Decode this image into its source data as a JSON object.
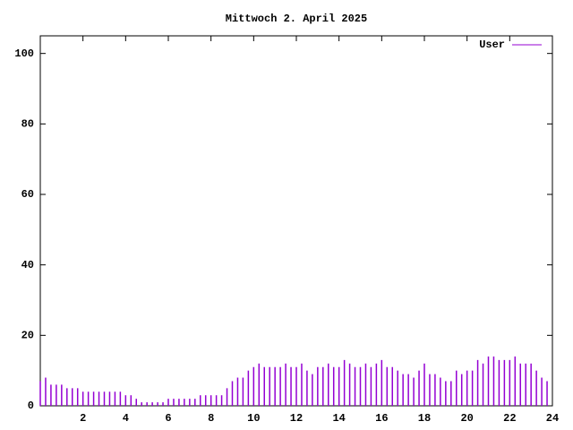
{
  "chart_data": {
    "type": "impulse",
    "title": "Mittwoch 2. April 2025",
    "x": [
      0,
      0.25,
      0.5,
      0.75,
      1,
      1.25,
      1.5,
      1.75,
      2,
      2.25,
      2.5,
      2.75,
      3,
      3.25,
      3.5,
      3.75,
      4,
      4.25,
      4.5,
      4.75,
      5,
      5.25,
      5.5,
      5.75,
      6,
      6.25,
      6.5,
      6.75,
      7,
      7.25,
      7.5,
      7.75,
      8,
      8.25,
      8.5,
      8.75,
      9,
      9.25,
      9.5,
      9.75,
      10,
      10.25,
      10.5,
      10.75,
      11,
      11.25,
      11.5,
      11.75,
      12,
      12.25,
      12.5,
      12.75,
      13,
      13.25,
      13.5,
      13.75,
      14,
      14.25,
      14.5,
      14.75,
      15,
      15.25,
      15.5,
      15.75,
      16,
      16.25,
      16.5,
      16.75,
      17,
      17.25,
      17.5,
      17.75,
      18,
      18.25,
      18.5,
      18.75,
      19,
      19.25,
      19.5,
      19.75,
      20,
      20.25,
      20.5,
      20.75,
      21,
      21.25,
      21.5,
      21.75,
      22,
      22.25,
      22.5,
      22.75,
      23,
      23.25,
      23.5,
      23.75
    ],
    "series": [
      {
        "name": "User",
        "color": "#9400d3",
        "values": [
          7,
          8,
          6,
          6,
          6,
          5,
          5,
          5,
          4,
          4,
          4,
          4,
          4,
          4,
          4,
          4,
          3,
          3,
          2,
          1,
          1,
          1,
          1,
          1,
          2,
          2,
          2,
          2,
          2,
          2,
          3,
          3,
          3,
          3,
          3,
          5,
          7,
          8,
          8,
          10,
          11,
          12,
          11,
          11,
          11,
          11,
          12,
          11,
          11,
          12,
          10,
          9,
          11,
          11,
          12,
          11,
          11,
          13,
          12,
          11,
          11,
          12,
          11,
          12,
          13,
          11,
          11,
          10,
          9,
          9,
          8,
          10,
          12,
          9,
          9,
          8,
          7,
          7,
          10,
          9,
          10,
          10,
          13,
          12,
          14,
          14,
          13,
          13,
          13,
          14,
          12,
          12,
          12,
          10,
          8,
          7
        ]
      }
    ],
    "xlim": [
      0,
      24
    ],
    "xticks": [
      2,
      4,
      6,
      8,
      10,
      12,
      14,
      16,
      18,
      20,
      22,
      24
    ],
    "ylim": [
      0,
      105
    ],
    "yticks": [
      0,
      20,
      40,
      60,
      80,
      100
    ],
    "legend": "upper right"
  }
}
